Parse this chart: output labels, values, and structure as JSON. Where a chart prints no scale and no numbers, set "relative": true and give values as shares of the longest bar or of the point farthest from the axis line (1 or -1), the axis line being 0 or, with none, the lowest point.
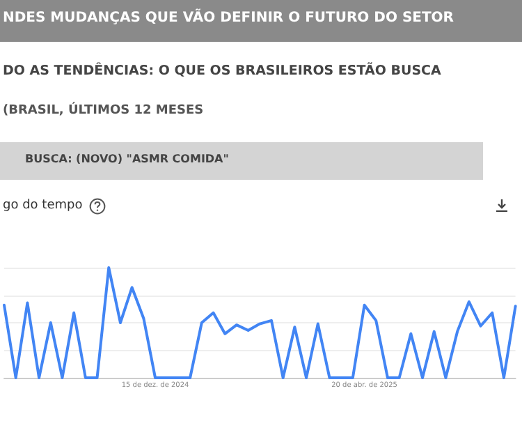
{
  "chart_data": {
    "type": "line",
    "title": "NDES MUDANÇAS QUE VÃO DEFINIR O FUTURO DO SETOR",
    "subtitle": "DO AS TENDÊNCIAS: O QUE OS BRASILEIROS ESTÃO BUSCA",
    "annotations": [
      "(BRASIL, ÚLTIMOS 12 MESES",
      "BUSCA: (NOVO) \"ASMR COMIDA\"",
      "go do tempo"
    ],
    "relative": true,
    "grid": true,
    "marker": "none",
    "line_style": "solid",
    "categories": [
      null,
      null,
      null,
      null,
      null,
      null,
      null,
      null,
      null,
      null,
      null,
      null,
      null,
      "15 de dez. de 2024",
      null,
      null,
      null,
      null,
      null,
      null,
      null,
      null,
      null,
      null,
      null,
      null,
      null,
      null,
      null,
      null,
      null,
      "20 de abr. de 2025",
      null,
      null,
      null,
      null,
      null,
      null,
      null,
      null,
      null,
      null,
      null,
      null,
      null
    ],
    "series": [
      {
        "color": "#4285f4",
        "values": [
          0.66,
          0,
          0.68,
          0,
          0.5,
          0,
          0.59,
          0,
          0,
          1,
          0.5,
          0.82,
          0.54,
          0,
          0,
          0,
          0,
          0.5,
          0.59,
          0.4,
          0.48,
          0.43,
          0.49,
          0.52,
          0,
          0.46,
          0,
          0.49,
          0,
          0,
          0,
          0.66,
          0.52,
          0,
          0,
          0.4,
          0,
          0.42,
          0,
          0.42,
          0.69,
          0.47,
          0.59,
          0,
          0.65
        ]
      }
    ]
  }
}
